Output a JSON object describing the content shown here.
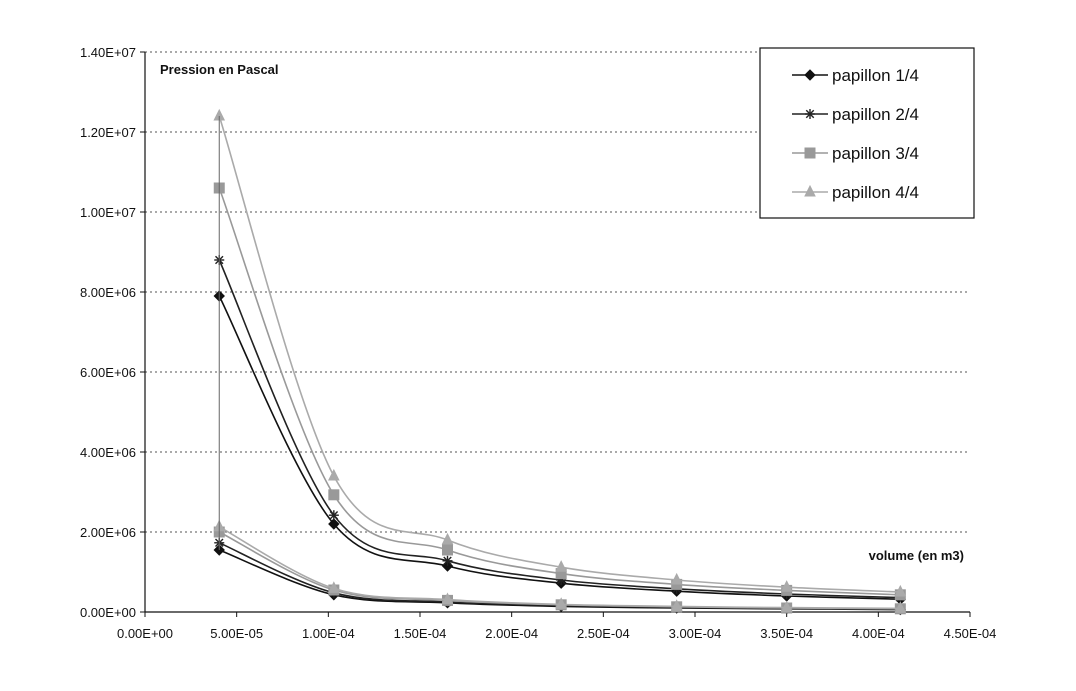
{
  "chart_data": {
    "type": "scatter",
    "title": "Pression en Pascal",
    "xlabel": "volume (en m3)",
    "ylabel": "",
    "xlim": [
      0,
      0.00045
    ],
    "ylim": [
      0,
      14000000
    ],
    "xticks": [
      0,
      5e-05,
      0.0001,
      0.00015,
      0.0002,
      0.00025,
      0.0003,
      0.00035,
      0.0004,
      0.00045
    ],
    "xtick_labels": [
      "0.00E+00",
      "5.00E-05",
      "1.00E-04",
      "1.50E-04",
      "2.00E-04",
      "2.50E-04",
      "3.00E-04",
      "3.50E-04",
      "4.00E-04",
      "4.50E-04"
    ],
    "yticks": [
      0,
      2000000,
      4000000,
      6000000,
      8000000,
      10000000,
      12000000,
      14000000
    ],
    "ytick_labels": [
      "0.00E+00",
      "2.00E+06",
      "4.00E+06",
      "6.00E+06",
      "8.00E+06",
      "1.00E+07",
      "1.20E+07",
      "1.40E+07"
    ],
    "grid": "horizontal-dotted",
    "legend_position": "top-right",
    "series": [
      {
        "name": "papillon 1/4",
        "marker": "diamond",
        "color": "#111111",
        "lines": [
          {
            "x": [
              4.05e-05,
              0.000103,
              0.000165,
              0.000227,
              0.00029,
              0.00035,
              0.000412
            ],
            "y": [
              7900000,
              2200000,
              1150000,
              720000,
              520000,
              400000,
              320000
            ]
          },
          {
            "x": [
              4.05e-05,
              0.000103,
              0.000165,
              0.000227,
              0.00029,
              0.00035,
              0.000412
            ],
            "y": [
              1550000,
              430000,
              230000,
              140000,
              100000,
              80000,
              60000
            ]
          }
        ]
      },
      {
        "name": "papillon 2/4",
        "marker": "asterisk",
        "color": "#222222",
        "lines": [
          {
            "x": [
              4.05e-05,
              0.000103,
              0.000165,
              0.000227,
              0.00029,
              0.00035,
              0.000412
            ],
            "y": [
              8800000,
              2420000,
              1280000,
              800000,
              580000,
              450000,
              360000
            ]
          },
          {
            "x": [
              4.05e-05,
              0.000103,
              0.000165,
              0.000227,
              0.00029,
              0.00035,
              0.000412
            ],
            "y": [
              1730000,
              480000,
              250000,
              160000,
              110000,
              90000,
              70000
            ]
          }
        ]
      },
      {
        "name": "papillon 3/4",
        "marker": "square",
        "color": "#999999",
        "lines": [
          {
            "x": [
              4.05e-05,
              0.000103,
              0.000165,
              0.000227,
              0.00029,
              0.00035,
              0.000412
            ],
            "y": [
              10600000,
              2930000,
              1550000,
              960000,
              690000,
              540000,
              430000
            ]
          },
          {
            "x": [
              4.05e-05,
              0.000103,
              0.000165,
              0.000227,
              0.00029,
              0.00035,
              0.000412
            ],
            "y": [
              2000000,
              550000,
              290000,
              180000,
              130000,
              100000,
              80000
            ]
          }
        ]
      },
      {
        "name": "papillon 4/4",
        "marker": "triangle",
        "color": "#aaaaaa",
        "lines": [
          {
            "x": [
              4.05e-05,
              0.000103,
              0.000165,
              0.000227,
              0.00029,
              0.00035,
              0.000412
            ],
            "y": [
              12400000,
              3400000,
              1800000,
              1120000,
              800000,
              620000,
              500000
            ]
          },
          {
            "x": [
              4.05e-05,
              0.000103,
              0.000165,
              0.000227,
              0.00029,
              0.00035,
              0.000412
            ],
            "y": [
              2130000,
              590000,
              310000,
              190000,
              140000,
              110000,
              90000
            ]
          }
        ]
      }
    ]
  }
}
